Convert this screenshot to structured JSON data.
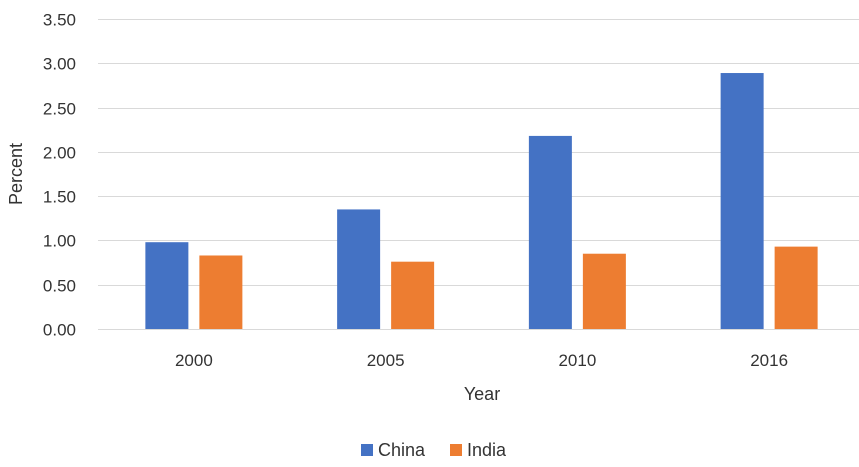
{
  "chart_data": {
    "type": "bar",
    "title": "",
    "xlabel": "Year",
    "ylabel": "Percent",
    "categories": [
      "2000",
      "2005",
      "2010",
      "2016"
    ],
    "series": [
      {
        "name": "China",
        "values": [
          0.98,
          1.35,
          2.18,
          2.89
        ]
      },
      {
        "name": "India",
        "values": [
          0.83,
          0.76,
          0.85,
          0.93
        ]
      }
    ],
    "ylim": [
      0,
      3.5
    ],
    "yticks": [
      "0.00",
      "0.50",
      "1.00",
      "1.50",
      "2.00",
      "2.50",
      "3.00",
      "3.50"
    ],
    "grid": true,
    "legend": "bottom-center",
    "colors": {
      "China": "#4472C4",
      "India": "#ED7D31"
    }
  }
}
